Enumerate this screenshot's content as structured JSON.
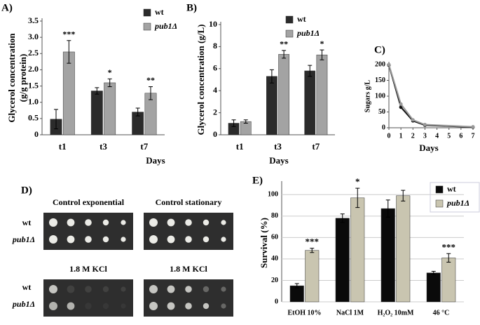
{
  "chart_data": [
    {
      "type": "bar",
      "title": "A)",
      "xlabel": "Days",
      "ylabel": [
        "Glycerol concentration",
        "(g/g protein)"
      ],
      "categories": [
        "t1",
        "t3",
        "t7"
      ],
      "series": [
        {
          "name": "wt",
          "color": "#2b2b2b",
          "values": [
            0.48,
            1.35,
            0.7
          ],
          "errors": [
            0.3,
            0.1,
            0.12
          ]
        },
        {
          "name": "pub1Δ",
          "color": "#a3a3a3",
          "values": [
            2.55,
            1.6,
            1.28
          ],
          "errors": [
            0.35,
            0.12,
            0.2
          ],
          "significance": [
            "***",
            "*",
            "**"
          ]
        }
      ],
      "ylim": [
        0,
        3.5
      ],
      "yticks": [
        0,
        0.5,
        {
          "value": 1,
          "label": "1.0"
        },
        1.5,
        {
          "value": 2,
          "label": "2.0"
        },
        2.5,
        {
          "value": 3,
          "label": "3.0"
        },
        3.5
      ],
      "grid": false
    },
    {
      "type": "bar",
      "title": "B)",
      "xlabel": "Days",
      "ylabel": [
        "Glycerol concentration (g/L)"
      ],
      "categories": [
        "t1",
        "t3",
        "t7"
      ],
      "series": [
        {
          "name": "wt",
          "color": "#2b2b2b",
          "values": [
            1.05,
            5.3,
            5.8
          ],
          "errors": [
            0.3,
            0.6,
            0.5
          ]
        },
        {
          "name": "pub1Δ",
          "color": "#a3a3a3",
          "values": [
            1.2,
            7.3,
            7.25
          ],
          "errors": [
            0.15,
            0.35,
            0.45
          ],
          "significance": [
            null,
            "**",
            "*"
          ]
        }
      ],
      "ylim": [
        0,
        10
      ],
      "yticks": [
        0,
        2,
        4,
        6,
        8,
        10
      ],
      "grid": false
    },
    {
      "type": "line",
      "title": "C)",
      "xlabel": "Days",
      "ylabel": [
        "Sugars g/L"
      ],
      "x": [
        0,
        1,
        2,
        3,
        7
      ],
      "series": [
        {
          "color": "#111111",
          "values": [
            198,
            65,
            22,
            8,
            2
          ]
        },
        {
          "color": "#9a9a9a",
          "values": [
            200,
            75,
            25,
            10,
            3
          ]
        }
      ],
      "xlim": [
        0,
        7
      ],
      "xticks": [
        0,
        1,
        2,
        3,
        4,
        5,
        6,
        7
      ],
      "ylim": [
        0,
        200
      ],
      "yticks": [
        0,
        50,
        100,
        150,
        200
      ],
      "grid": false
    },
    {
      "type": "bar",
      "title": "E)",
      "ylabel": [
        "Survival (%)"
      ],
      "categories": [
        "EtOH 10%",
        "NaCl 1M",
        "H₂O₂ 10mM",
        "46 °C"
      ],
      "series": [
        {
          "name": "wt",
          "color": "#0a0a0a",
          "values": [
            15,
            78,
            87,
            27
          ],
          "errors": [
            2,
            4,
            8,
            1.5
          ]
        },
        {
          "name": "pub1Δ",
          "color": "#c9c5b0",
          "values": [
            48,
            97,
            99,
            41
          ],
          "errors": [
            2,
            9,
            5,
            4
          ],
          "significance": [
            "***",
            "*",
            null,
            "***"
          ]
        }
      ],
      "ylim": [
        0,
        110
      ],
      "yticks": [
        0,
        20,
        40,
        60,
        80,
        100
      ],
      "grid": true,
      "legend_box": true
    }
  ],
  "panel_d": {
    "title": "D)",
    "plates": [
      "Control exponential",
      "Control stationary",
      "1.8 M KCl",
      "1.8 M KCl"
    ],
    "strains": [
      "wt",
      "pub1Δ"
    ]
  }
}
